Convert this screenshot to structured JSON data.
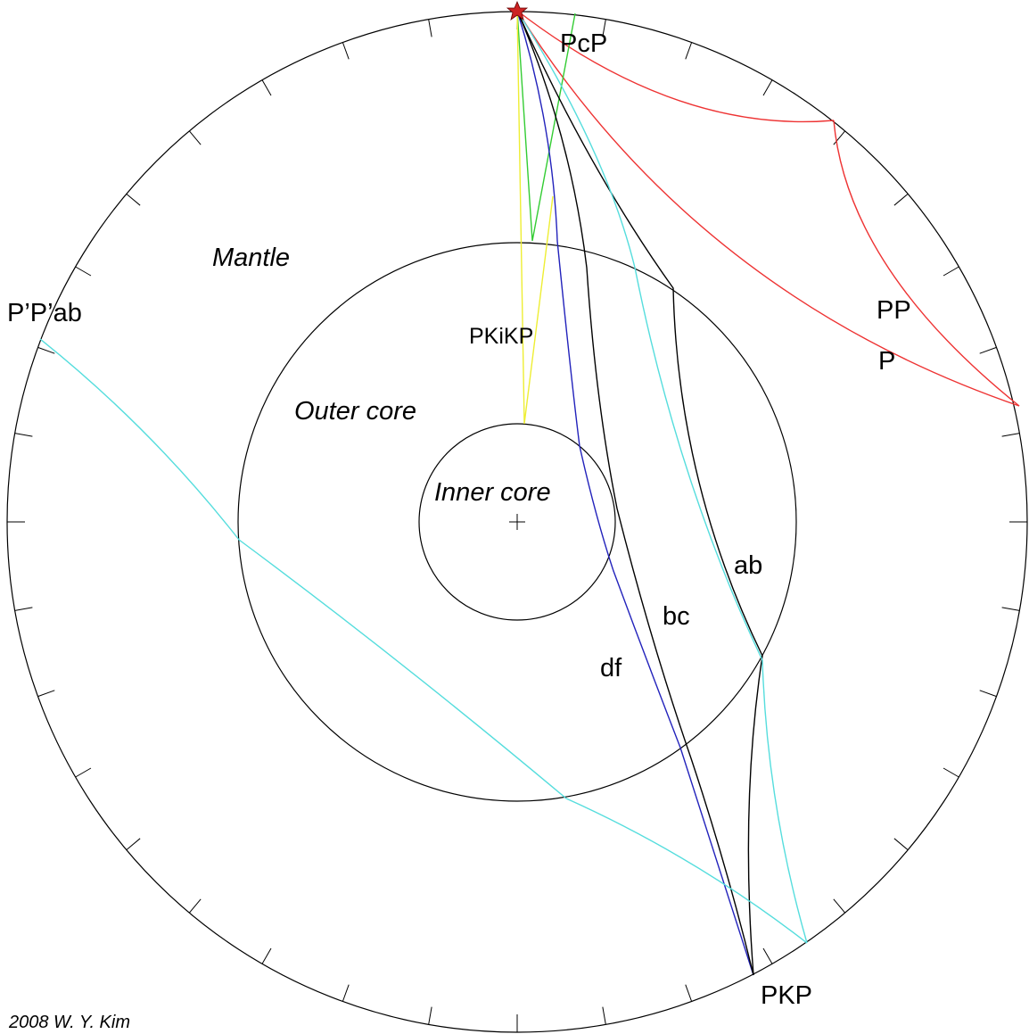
{
  "labels": {
    "pcp": "PcP",
    "pp": "PP",
    "p": "P",
    "ppab": "P’P’ab",
    "mantle": "Mantle",
    "pkikp": "PKiKP",
    "outer_core": "Outer core",
    "inner_core": "Inner core",
    "ab": "ab",
    "bc": "bc",
    "df": "df",
    "pkp": "PKP",
    "credit": "2008 W. Y. Kim"
  }
}
